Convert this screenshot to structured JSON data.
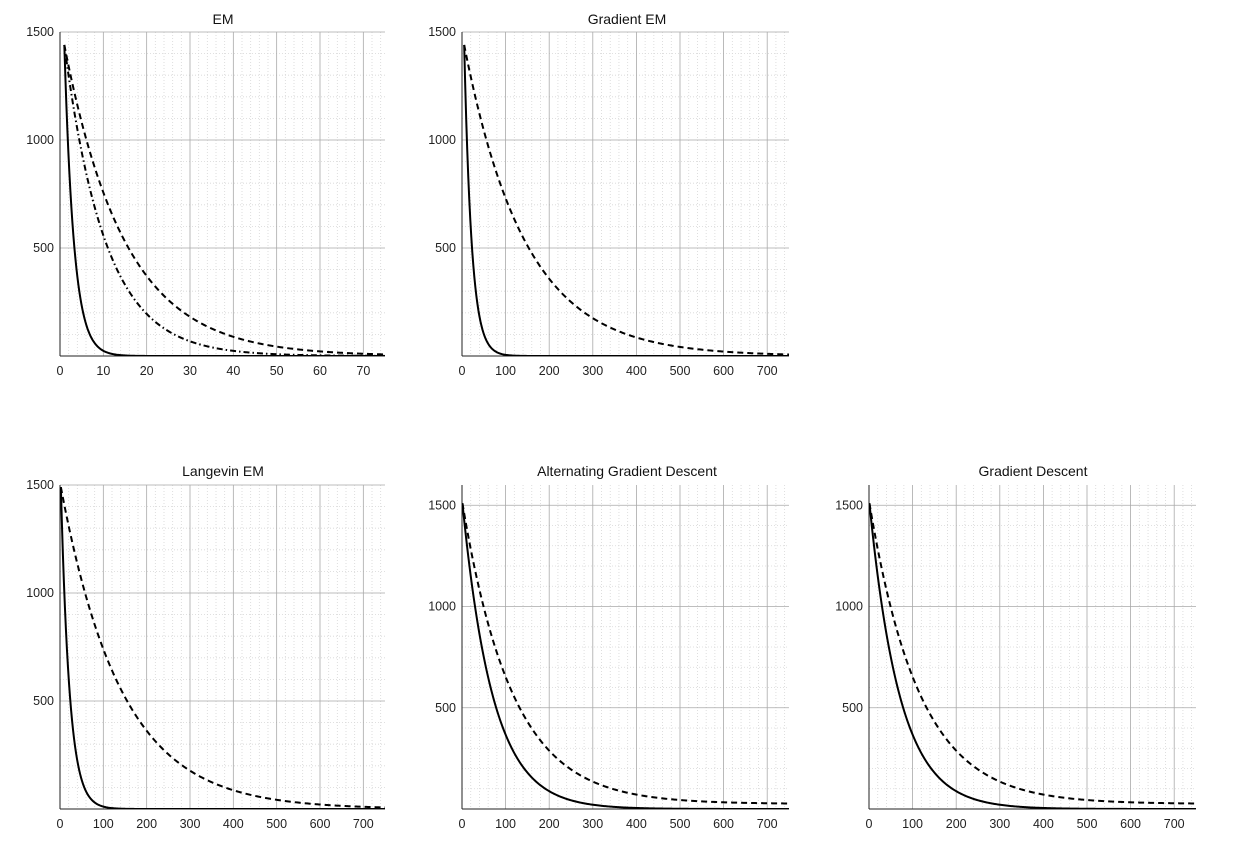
{
  "colors": {
    "background": "#ffffff",
    "grid_major": "#a9a9a9",
    "grid_minor": "#d6d6d6",
    "axis": "#222222",
    "series": "#000000"
  },
  "chart_data": [
    {
      "type": "line",
      "title": "EM",
      "xlim": [
        0,
        75
      ],
      "ylim": [
        0,
        1500
      ],
      "xticks": [
        0,
        10,
        20,
        30,
        40,
        50,
        60,
        70
      ],
      "yticks": [
        500,
        1000,
        1500
      ],
      "xlabel": "",
      "ylabel": "",
      "grid": "major+minor",
      "series": [
        {
          "name": "solid",
          "style": "solid",
          "start": [
            1,
            1440
          ],
          "decay_scale": 2.2,
          "x_end": 75
        },
        {
          "name": "dash-dot",
          "style": "dashdot",
          "start": [
            1,
            1440
          ],
          "decay_scale": 9.5,
          "x_end": 75
        },
        {
          "name": "dashed",
          "style": "dashed",
          "start": [
            1,
            1440
          ],
          "decay_scale": 14,
          "x_end": 75
        }
      ]
    },
    {
      "type": "line",
      "title": "Gradient EM",
      "xlim": [
        0,
        750
      ],
      "ylim": [
        0,
        1500
      ],
      "xticks": [
        0,
        100,
        200,
        300,
        400,
        500,
        600,
        700
      ],
      "yticks": [
        500,
        1000,
        1500
      ],
      "xlabel": "",
      "ylabel": "",
      "grid": "major+minor",
      "series": [
        {
          "name": "solid",
          "style": "solid",
          "start": [
            5,
            1440
          ],
          "decay_scale": 17,
          "x_end": 750
        },
        {
          "name": "dashed",
          "style": "dashed",
          "start": [
            5,
            1440
          ],
          "decay_scale": 140,
          "x_end": 750
        }
      ]
    },
    {
      "type": "line",
      "title": "Langevin EM",
      "xlim": [
        0,
        750
      ],
      "ylim": [
        0,
        1500
      ],
      "xticks": [
        0,
        100,
        200,
        300,
        400,
        500,
        600,
        700
      ],
      "yticks": [
        500,
        1000,
        1500
      ],
      "xlabel": "",
      "ylabel": "",
      "grid": "major+minor",
      "series": [
        {
          "name": "solid",
          "style": "solid",
          "start": [
            2,
            1490
          ],
          "decay_scale": 20,
          "x_end": 750
        },
        {
          "name": "dashed",
          "style": "dashed",
          "start": [
            2,
            1490
          ],
          "decay_scale": 140,
          "x_end": 750
        }
      ]
    },
    {
      "type": "line",
      "title": "Alternating Gradient Descent",
      "xlim": [
        0,
        750
      ],
      "ylim": [
        0,
        1600
      ],
      "xticks": [
        0,
        100,
        200,
        300,
        400,
        500,
        600,
        700
      ],
      "yticks": [
        500,
        1000,
        1500
      ],
      "xlabel": "",
      "ylabel": "",
      "grid": "major+minor",
      "series": [
        {
          "name": "solid",
          "style": "solid",
          "start": [
            1,
            1510
          ],
          "decay_scale": 70,
          "x_end": 750
        },
        {
          "name": "dashed",
          "style": "dashed",
          "start": [
            1,
            1510
          ],
          "decay_scale": 115,
          "floor": 25,
          "x_end": 750
        }
      ]
    },
    {
      "type": "line",
      "title": "Gradient Descent",
      "xlim": [
        0,
        750
      ],
      "ylim": [
        0,
        1600
      ],
      "xticks": [
        0,
        100,
        200,
        300,
        400,
        500,
        600,
        700
      ],
      "yticks": [
        500,
        1000,
        1500
      ],
      "xlabel": "",
      "ylabel": "",
      "grid": "major+minor",
      "series": [
        {
          "name": "solid",
          "style": "solid",
          "start": [
            1,
            1510
          ],
          "decay_scale": 70,
          "x_end": 750
        },
        {
          "name": "dashed",
          "style": "dashed",
          "start": [
            1,
            1510
          ],
          "decay_scale": 115,
          "floor": 25,
          "x_end": 750
        }
      ]
    }
  ]
}
